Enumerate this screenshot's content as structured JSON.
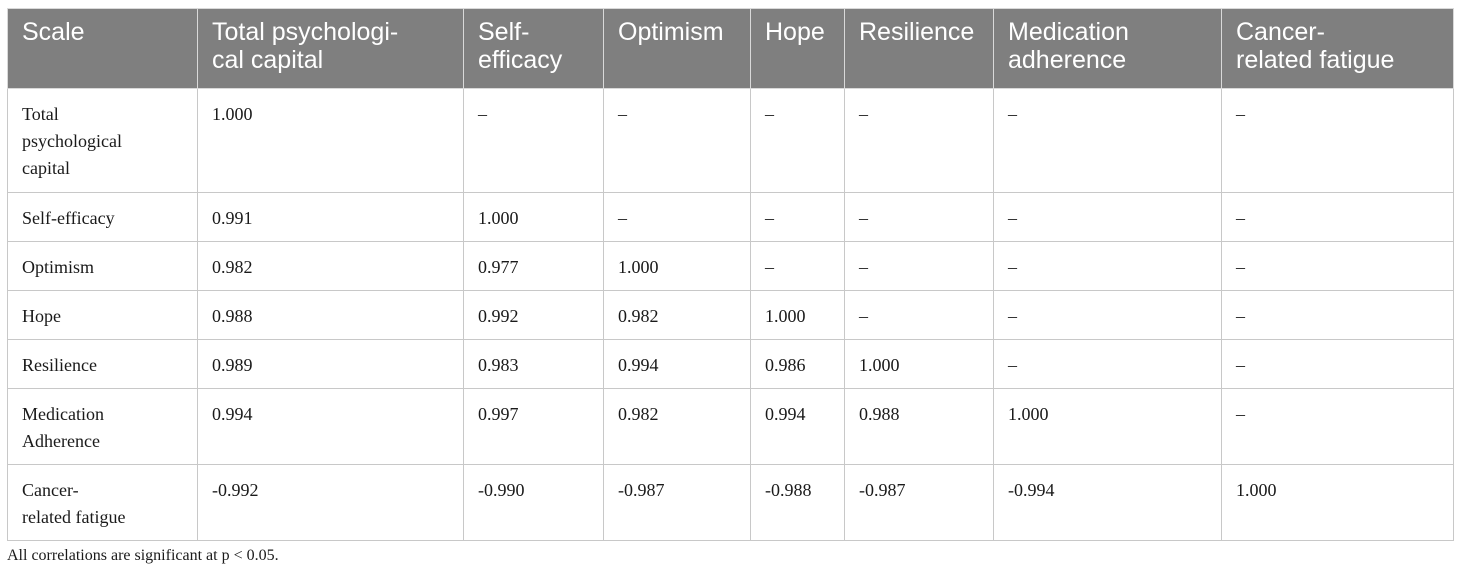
{
  "table": {
    "headers": [
      "Scale",
      "Total psychologi-\ncal capital",
      "Self-\nefficacy",
      "Optimism",
      "Hope",
      "Resilience",
      "Medication\nadherence",
      "Cancer-\nrelated fatigue"
    ],
    "rows": [
      [
        "Total\npsychological\ncapital",
        "1.000",
        "–",
        "–",
        "–",
        "–",
        "–",
        "–"
      ],
      [
        "Self-efficacy",
        "0.991",
        "1.000",
        "–",
        "–",
        "–",
        "–",
        "–"
      ],
      [
        "Optimism",
        "0.982",
        "0.977",
        "1.000",
        "–",
        "–",
        "–",
        "–"
      ],
      [
        "Hope",
        "0.988",
        "0.992",
        "0.982",
        "1.000",
        "–",
        "–",
        "–"
      ],
      [
        "Resilience",
        "0.989",
        "0.983",
        "0.994",
        "0.986",
        "1.000",
        "–",
        "–"
      ],
      [
        "Medication\nAdherence",
        "0.994",
        "0.997",
        "0.982",
        "0.994",
        "0.988",
        "1.000",
        "–"
      ],
      [
        "Cancer-\nrelated fatigue",
        "-0.992",
        "-0.990",
        "-0.987",
        "-0.988",
        "-0.987",
        "-0.994",
        "1.000"
      ]
    ]
  },
  "footnote": "All correlations are significant at p < 0.05."
}
